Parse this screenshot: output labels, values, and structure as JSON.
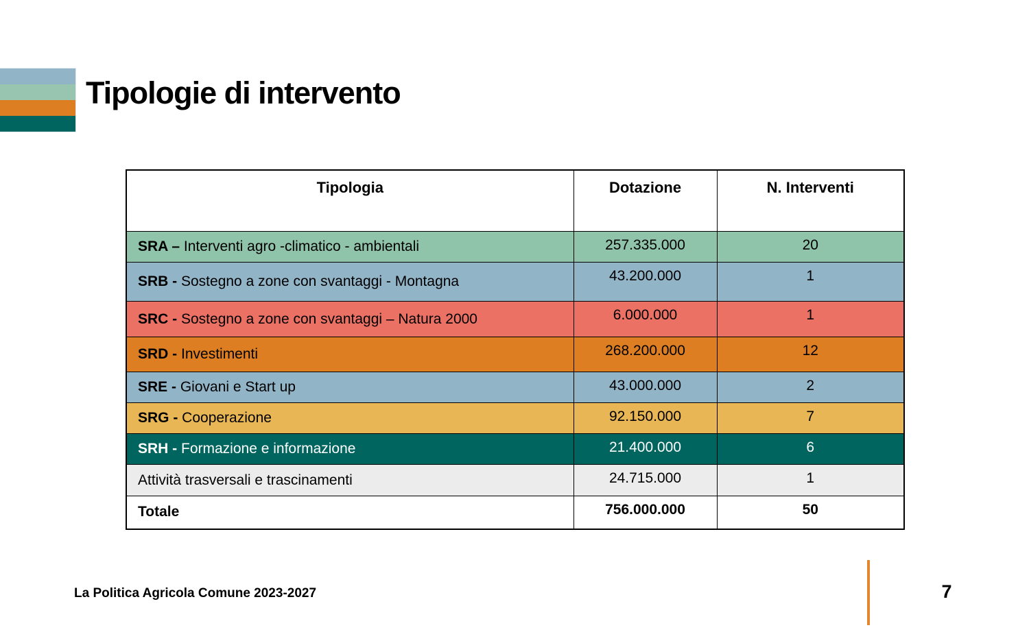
{
  "slide": {
    "title": "Tipologie di intervento",
    "footer": "La Politica Agricola Comune 2023-2027",
    "page_number": "7"
  },
  "decorations": {
    "stripe_colors": [
      "#92B4C7",
      "#97C5B0",
      "#DC7E21",
      "#00655F"
    ],
    "accent_line_color": "#E2862F"
  },
  "table": {
    "headers": [
      "Tipologia",
      "Dotazione",
      "N. Interventi"
    ],
    "rows": [
      {
        "prefix": "SRA – ",
        "label": "Interventi agro -climatico - ambientali",
        "dotazione": "257.335.000",
        "interventi": "20",
        "bg": "#8FC3AA",
        "text": "#000000"
      },
      {
        "prefix": "SRB - ",
        "label": "Sostegno a zone con svantaggi - Montagna",
        "dotazione": "43.200.000",
        "interventi": "1",
        "bg": "#92B4C7",
        "text": "#000000"
      },
      {
        "prefix": "SRC - ",
        "label": "Sostegno a zone con svantaggi – Natura 2000",
        "dotazione": "6.000.000",
        "interventi": "1",
        "bg": "#EB7164",
        "text": "#000000"
      },
      {
        "prefix": "SRD - ",
        "label": "Investimenti",
        "dotazione": "268.200.000",
        "interventi": "12",
        "bg": "#DC7E21",
        "text": "#000000"
      },
      {
        "prefix": "SRE - ",
        "label": "Giovani e Start up",
        "dotazione": "43.000.000",
        "interventi": "2",
        "bg": "#92B4C7",
        "text": "#000000"
      },
      {
        "prefix": "SRG - ",
        "label": "Cooperazione",
        "dotazione": "92.150.000",
        "interventi": "7",
        "bg": "#E8B654",
        "text": "#000000"
      },
      {
        "prefix": "SRH - ",
        "label": "Formazione e informazione",
        "dotazione": "21.400.000",
        "interventi": "6",
        "bg": "#00655F",
        "text": "#FFFFFF"
      },
      {
        "prefix": "",
        "label": "Attività trasversali e trascinamenti",
        "dotazione": "24.715.000",
        "interventi": "1",
        "bg": "#ECECEC",
        "text": "#000000"
      }
    ],
    "total": {
      "label": "Totale",
      "dotazione": "756.000.000",
      "interventi": "50"
    }
  }
}
